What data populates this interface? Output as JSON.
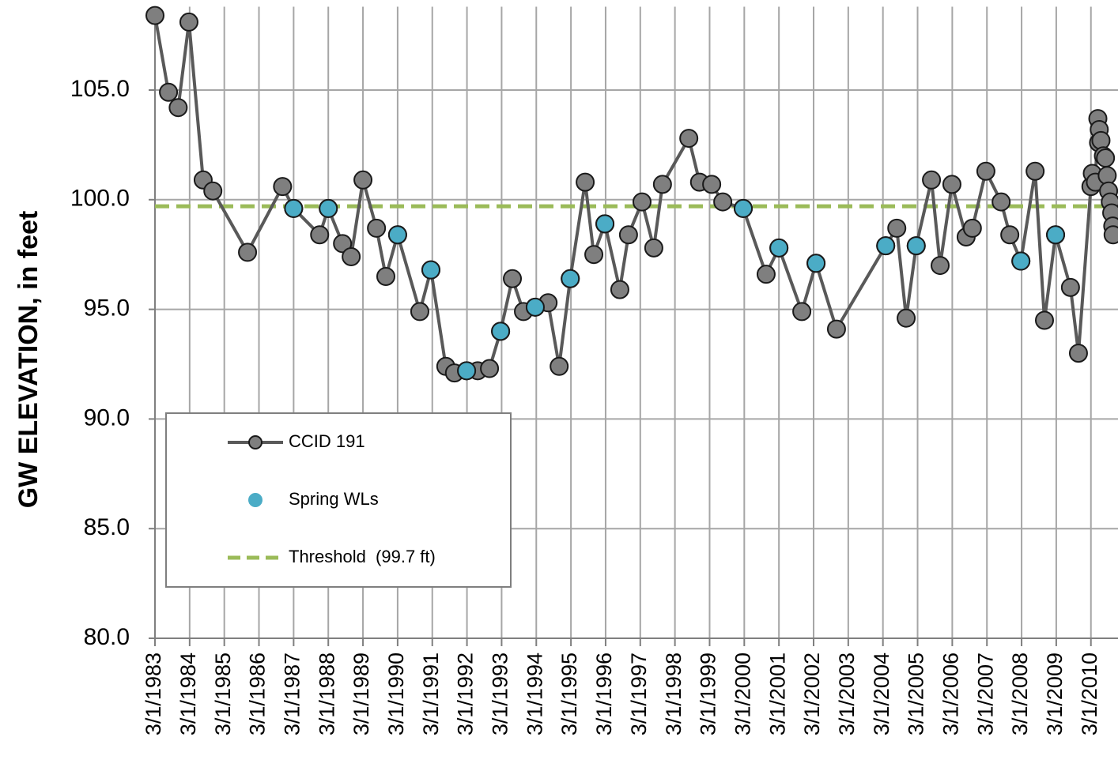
{
  "chart_data": {
    "type": "line",
    "y_label": "GW ELEVATION, in feet",
    "xlim": [
      1983.16,
      2010.85
    ],
    "ylim": [
      80,
      108.8
    ],
    "grid": true,
    "legend": "lower left",
    "yticks": [
      {
        "value": 80,
        "label": "80.0"
      },
      {
        "value": 85,
        "label": "85.0"
      },
      {
        "value": 90,
        "label": "90.0"
      },
      {
        "value": 95,
        "label": "95.0"
      },
      {
        "value": 100,
        "label": "100.0"
      },
      {
        "value": 105,
        "label": "105.0"
      }
    ],
    "xticks": [
      {
        "value": 1983.16,
        "label": "3/1/1983"
      },
      {
        "value": 1984.16,
        "label": "3/1/1984"
      },
      {
        "value": 1985.16,
        "label": "3/1/1985"
      },
      {
        "value": 1986.16,
        "label": "3/1/1986"
      },
      {
        "value": 1987.16,
        "label": "3/1/1987"
      },
      {
        "value": 1988.16,
        "label": "3/1/1988"
      },
      {
        "value": 1989.16,
        "label": "3/1/1989"
      },
      {
        "value": 1990.16,
        "label": "3/1/1990"
      },
      {
        "value": 1991.16,
        "label": "3/1/1991"
      },
      {
        "value": 1992.16,
        "label": "3/1/1992"
      },
      {
        "value": 1993.16,
        "label": "3/1/1993"
      },
      {
        "value": 1994.16,
        "label": "3/1/1994"
      },
      {
        "value": 1995.16,
        "label": "3/1/1995"
      },
      {
        "value": 1996.16,
        "label": "3/1/1996"
      },
      {
        "value": 1997.16,
        "label": "3/1/1997"
      },
      {
        "value": 1998.16,
        "label": "3/1/1998"
      },
      {
        "value": 1999.16,
        "label": "3/1/1999"
      },
      {
        "value": 2000.16,
        "label": "3/1/2000"
      },
      {
        "value": 2001.16,
        "label": "3/1/2001"
      },
      {
        "value": 2002.16,
        "label": "3/1/2002"
      },
      {
        "value": 2003.16,
        "label": "3/1/2003"
      },
      {
        "value": 2004.16,
        "label": "3/1/2004"
      },
      {
        "value": 2005.16,
        "label": "3/1/2005"
      },
      {
        "value": 2006.16,
        "label": "3/1/2006"
      },
      {
        "value": 2007.16,
        "label": "3/1/2007"
      },
      {
        "value": 2008.16,
        "label": "3/1/2008"
      },
      {
        "value": 2009.16,
        "label": "3/1/2009"
      },
      {
        "value": 2010.16,
        "label": "3/1/2010"
      }
    ],
    "series": [
      {
        "name": "CCID 191",
        "color": "#7f7f7f",
        "line": true,
        "x": [
          1983.16,
          1983.55,
          1983.83,
          1984.14,
          1984.55,
          1984.83,
          1985.83,
          1986.84,
          1987.16,
          1987.91,
          1988.16,
          1988.57,
          1988.82,
          1989.16,
          1989.55,
          1989.82,
          1990.16,
          1990.8,
          1991.12,
          1991.55,
          1991.8,
          1992.15,
          1992.47,
          1992.81,
          1993.13,
          1993.47,
          1993.79,
          1994.13,
          1994.5,
          1994.82,
          1995.14,
          1995.57,
          1995.82,
          1996.14,
          1996.57,
          1996.82,
          1997.21,
          1997.55,
          1997.8,
          1998.56,
          1998.87,
          1999.22,
          1999.54,
          2000.13,
          2000.79,
          2001.16,
          2001.82,
          2002.23,
          2002.82,
          2004.24,
          2004.56,
          2004.83,
          2005.12,
          2005.56,
          2005.81,
          2006.15,
          2006.56,
          2006.74,
          2007.13,
          2007.57,
          2007.82,
          2008.14,
          2008.55,
          2008.82,
          2009.14,
          2009.57,
          2009.8,
          2010.16,
          2010.2,
          2010.29,
          2010.36,
          2010.38,
          2010.4,
          2010.45,
          2010.52,
          2010.58,
          2010.63,
          2010.67,
          2010.72,
          2010.76,
          2010.79,
          2010.8
        ],
        "values": [
          108.4,
          104.9,
          104.2,
          108.1,
          100.9,
          100.4,
          97.6,
          100.6,
          99.6,
          98.4,
          99.6,
          98.0,
          97.4,
          100.9,
          98.7,
          96.5,
          98.4,
          94.9,
          96.8,
          92.4,
          92.1,
          92.2,
          92.2,
          92.3,
          94.0,
          96.4,
          94.9,
          95.1,
          95.3,
          92.4,
          96.4,
          100.8,
          97.5,
          98.9,
          95.9,
          98.4,
          99.9,
          97.8,
          100.7,
          102.8,
          100.8,
          100.7,
          99.9,
          99.6,
          96.6,
          97.8,
          94.9,
          97.1,
          94.1,
          97.9,
          98.7,
          94.6,
          97.9,
          100.9,
          97.0,
          100.7,
          98.3,
          98.7,
          101.3,
          99.9,
          98.4,
          97.2,
          101.3,
          94.5,
          98.4,
          96.0,
          93.0,
          100.6,
          101.2,
          100.8,
          103.7,
          102.6,
          103.2,
          102.7,
          102.0,
          101.9,
          101.1,
          100.4,
          99.9,
          99.4,
          98.8,
          98.4
        ]
      },
      {
        "name": "Spring WLs",
        "color": "#4bacc6",
        "line": false,
        "x": [
          1987.16,
          1988.16,
          1990.16,
          1991.12,
          1992.15,
          1993.13,
          1994.13,
          1995.14,
          1996.14,
          2000.13,
          2001.16,
          2002.23,
          2004.24,
          2005.12,
          2008.14,
          2009.14
        ],
        "values": [
          99.6,
          99.6,
          98.4,
          96.8,
          92.2,
          94.0,
          95.1,
          96.4,
          98.9,
          99.6,
          97.8,
          97.1,
          97.9,
          97.9,
          97.2,
          98.4
        ]
      }
    ],
    "threshold": {
      "name": "Threshold  (99.7 ft)",
      "value": 99.7,
      "color": "#9bbb59"
    }
  }
}
